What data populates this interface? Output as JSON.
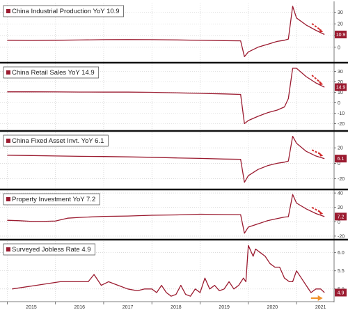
{
  "chart_data": [
    {
      "type": "line",
      "legend": "China Industrial Production YoY 10.9",
      "last_value_label": "10.9",
      "y_ticks": [
        "30",
        "20",
        "10",
        "0"
      ],
      "ylim": [
        -12,
        38
      ],
      "arrow": "red",
      "color": "#9b1b30",
      "x": [
        2015.0,
        2015.5,
        2016.0,
        2016.5,
        2017.0,
        2017.5,
        2018.0,
        2018.5,
        2019.0,
        2019.5,
        2019.84,
        2019.92,
        2020.0,
        2020.2,
        2020.4,
        2020.6,
        2020.75,
        2020.83,
        2020.92,
        2021.0,
        2021.2,
        2021.4,
        2021.58
      ],
      "values": [
        6.0,
        5.8,
        6.0,
        6.2,
        6.5,
        6.6,
        6.5,
        6.3,
        5.9,
        5.6,
        5.5,
        -8.0,
        -4.0,
        0.0,
        2.5,
        5.0,
        6.0,
        7.0,
        35.0,
        25.0,
        19.0,
        14.5,
        10.9
      ]
    },
    {
      "type": "line",
      "legend": "China Retail Sales YoY 14.9",
      "last_value_label": "14.9",
      "y_ticks": [
        "30",
        "20",
        "10",
        "0",
        "-10",
        "-20"
      ],
      "ylim": [
        -25,
        37
      ],
      "arrow": "red",
      "color": "#9b1b30",
      "x": [
        2015.0,
        2015.5,
        2016.0,
        2016.5,
        2017.0,
        2017.5,
        2018.0,
        2018.5,
        2019.0,
        2019.5,
        2019.84,
        2019.92,
        2020.0,
        2020.2,
        2020.4,
        2020.6,
        2020.75,
        2020.83,
        2020.92,
        2021.0,
        2021.2,
        2021.4,
        2021.58
      ],
      "values": [
        10.5,
        10.5,
        10.4,
        10.3,
        10.2,
        10.2,
        10.0,
        9.5,
        9.0,
        8.5,
        8.0,
        -20.0,
        -17.0,
        -13.0,
        -9.5,
        -7.0,
        -4.0,
        4.0,
        33.0,
        33.0,
        25.0,
        19.0,
        14.9
      ]
    },
    {
      "type": "line",
      "legend": "China Fixed Asset Invt. YoY 6.1",
      "last_value_label": "6.1",
      "y_ticks": [
        "20",
        "0",
        "-20"
      ],
      "ylim": [
        -32,
        40
      ],
      "arrow": "red",
      "color": "#9b1b30",
      "x": [
        2015.0,
        2015.5,
        2016.0,
        2016.5,
        2017.0,
        2017.5,
        2018.0,
        2018.5,
        2019.0,
        2019.5,
        2019.84,
        2019.92,
        2020.0,
        2020.2,
        2020.4,
        2020.6,
        2020.75,
        2020.83,
        2020.92,
        2021.0,
        2021.2,
        2021.4,
        2021.58
      ],
      "values": [
        10.5,
        10.0,
        9.5,
        9.0,
        8.8,
        8.3,
        7.8,
        7.0,
        6.3,
        5.5,
        5.2,
        -24.5,
        -16.0,
        -8.0,
        -3.0,
        0.0,
        1.5,
        2.9,
        35.0,
        26.0,
        15.5,
        9.5,
        6.1
      ]
    },
    {
      "type": "line",
      "legend": "Property Investment YoY 7.2",
      "last_value_label": "7.2",
      "y_ticks": [
        "40",
        "20",
        "0",
        "-20"
      ],
      "ylim": [
        -23,
        43
      ],
      "arrow": "red",
      "color": "#9b1b30",
      "x": [
        2015.0,
        2015.25,
        2015.5,
        2015.75,
        2016.0,
        2016.25,
        2016.5,
        2017.0,
        2017.5,
        2018.0,
        2018.5,
        2019.0,
        2019.5,
        2019.84,
        2019.92,
        2020.0,
        2020.2,
        2020.4,
        2020.6,
        2020.75,
        2020.83,
        2020.92,
        2021.0,
        2021.2,
        2021.4,
        2021.58
      ],
      "values": [
        2.0,
        1.5,
        0.5,
        0.5,
        1.0,
        5.0,
        6.0,
        7.5,
        8.0,
        9.0,
        9.5,
        10.5,
        10.0,
        9.9,
        -16.0,
        -7.5,
        -3.0,
        1.5,
        4.5,
        6.5,
        7.0,
        38.0,
        26.0,
        18.0,
        11.5,
        7.2
      ]
    },
    {
      "type": "line",
      "legend": "Surveyed Jobless Rate 4.9",
      "last_value_label": "4.9",
      "y_ticks": [
        "6.0",
        "5.5",
        "5.0"
      ],
      "ylim": [
        4.67,
        6.32
      ],
      "arrow": "orange",
      "color": "#9b1b30",
      "x": [
        2015.1,
        2015.6,
        2016.1,
        2016.6,
        2016.68,
        2016.8,
        2016.95,
        2017.1,
        2017.3,
        2017.5,
        2017.7,
        2017.85,
        2018.0,
        2018.1,
        2018.2,
        2018.3,
        2018.4,
        2018.5,
        2018.6,
        2018.7,
        2018.8,
        2018.9,
        2019.0,
        2019.1,
        2019.2,
        2019.3,
        2019.4,
        2019.5,
        2019.6,
        2019.7,
        2019.8,
        2019.9,
        2019.95,
        2020.0,
        2020.1,
        2020.15,
        2020.25,
        2020.35,
        2020.45,
        2020.55,
        2020.65,
        2020.75,
        2020.85,
        2020.92,
        2021.0,
        2021.1,
        2021.2,
        2021.3,
        2021.4,
        2021.5,
        2021.58
      ],
      "values": [
        5.0,
        5.1,
        5.2,
        5.2,
        5.2,
        5.4,
        5.1,
        5.2,
        5.1,
        5.0,
        4.95,
        5.0,
        5.0,
        4.9,
        5.1,
        4.9,
        4.8,
        4.85,
        5.1,
        4.85,
        4.8,
        5.0,
        4.9,
        5.3,
        5.0,
        5.1,
        4.95,
        5.0,
        5.2,
        5.0,
        5.1,
        5.3,
        5.2,
        6.2,
        5.9,
        6.1,
        6.0,
        5.9,
        5.7,
        5.6,
        5.6,
        5.3,
        5.2,
        5.2,
        5.5,
        5.3,
        5.1,
        4.9,
        5.0,
        5.0,
        4.9
      ]
    }
  ],
  "x_axis": {
    "ticks": [
      "2015",
      "2016",
      "2017",
      "2018",
      "2019",
      "2020",
      "2021"
    ],
    "values": [
      2015,
      2016,
      2017,
      2018,
      2019,
      2020,
      2021
    ],
    "range": [
      2014.85,
      2021.75
    ]
  }
}
